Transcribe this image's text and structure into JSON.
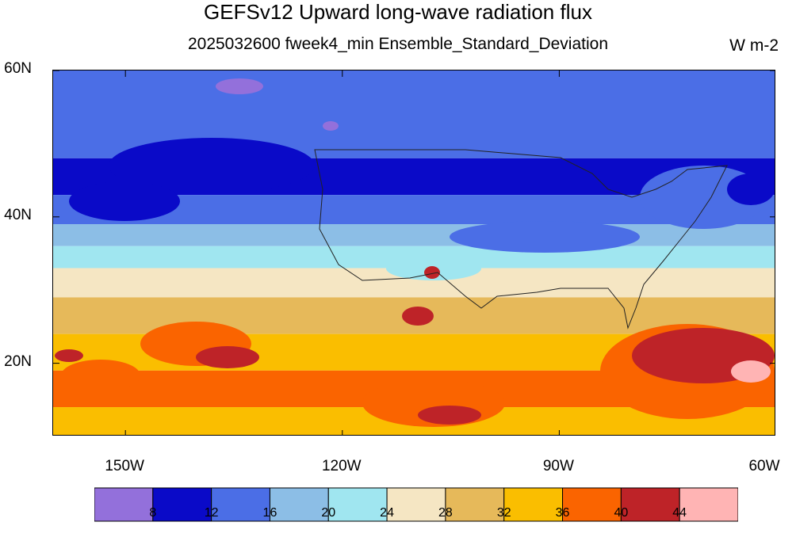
{
  "title": "GEFSv12 Upward long-wave radiation flux",
  "subtitle": "2025032600 fweek4_min Ensemble_Standard_Deviation",
  "units": "W m-2",
  "lat_labels": [
    "60N",
    "40N",
    "20N"
  ],
  "lon_labels": [
    "150W",
    "120W",
    "90W",
    "60W"
  ],
  "colorbar": {
    "levels": [
      "8",
      "12",
      "16",
      "20",
      "24",
      "28",
      "32",
      "36",
      "40",
      "44"
    ],
    "colors": [
      "#9370db",
      "#0a0ac8",
      "#4b6ee6",
      "#8cbee6",
      "#a0e6f0",
      "#f5e6c3",
      "#e6b95a",
      "#fabe00",
      "#fa6400",
      "#be2328",
      "#ffb4b4"
    ]
  },
  "map": {
    "lat_range": [
      10,
      60
    ],
    "lon_range": [
      -160,
      -60
    ],
    "bands": [
      {
        "lat": 60,
        "level": 2
      },
      {
        "lat": 48,
        "level": 1
      },
      {
        "lat": 43,
        "level": 2
      },
      {
        "lat": 39,
        "level": 3
      },
      {
        "lat": 36,
        "level": 4
      },
      {
        "lat": 33,
        "level": 5
      },
      {
        "lat": 29,
        "level": 6
      },
      {
        "lat": 24,
        "level": 7
      },
      {
        "lat": 19,
        "level": 8
      },
      {
        "lat": 14,
        "level": 7
      }
    ]
  }
}
